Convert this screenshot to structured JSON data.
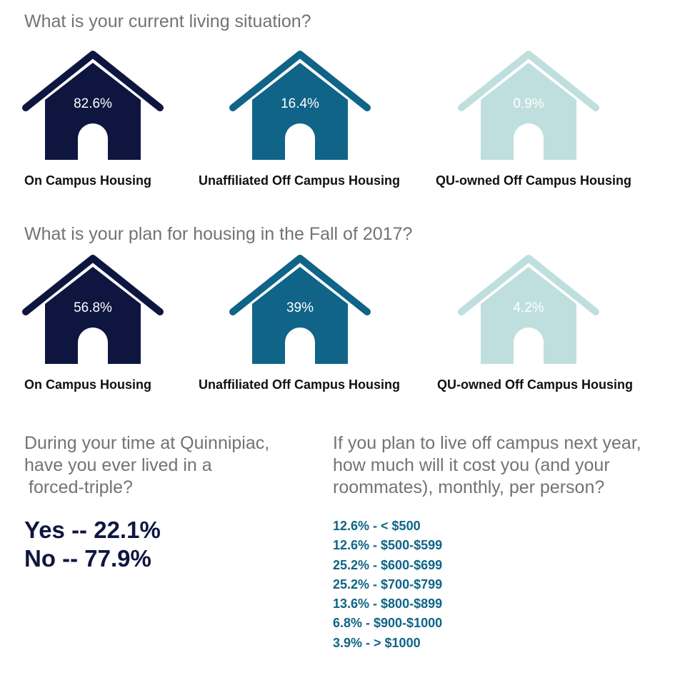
{
  "colors": {
    "dark_navy": "#0e1640",
    "teal_blue": "#0f6487",
    "light_teal": "#bfdfde",
    "question_gray": "#737373"
  },
  "current": {
    "question": "What is your current living situation?",
    "houses": [
      {
        "percent": "82.6%",
        "label": "On Campus Housing",
        "color": "#0e1640",
        "icon": "house-icon"
      },
      {
        "percent": "16.4%",
        "label": "Unaffiliated Off Campus Housing",
        "color": "#0f6487",
        "icon": "house-icon"
      },
      {
        "percent": "0.9%",
        "label": "QU-owned Off Campus Housing",
        "color": "#bfdfde",
        "icon": "house-icon"
      }
    ]
  },
  "fall_plan": {
    "question": "What is your plan for housing in the Fall of 2017?",
    "houses": [
      {
        "percent": "56.8%",
        "label": "On Campus Housing",
        "color": "#0e1640",
        "icon": "house-icon"
      },
      {
        "percent": "39%",
        "label": "Unaffiliated Off Campus Housing",
        "color": "#0f6487",
        "icon": "house-icon"
      },
      {
        "percent": "4.2%",
        "label": "QU-owned Off Campus Housing",
        "color": "#bfdfde",
        "icon": "house-icon"
      }
    ]
  },
  "forced_triple": {
    "question_lines": [
      "During your time at Quinnipiac,",
      "have you ever lived in a",
      "forced-triple?"
    ],
    "yes": "Yes -- 22.1%",
    "no": "No -- 77.9%"
  },
  "off_campus_cost": {
    "question_lines": [
      "If you plan to live off campus next year,",
      "how much will it cost you (and your",
      "roommates), monthly, per person?"
    ],
    "items": [
      "12.6% - < $500",
      "12.6% - $500-$599",
      "25.2% - $600-$699",
      "25.2% - $700-$799",
      "13.6% - $800-$899",
      "6.8% - $900-$1000",
      "3.9% - > $1000"
    ]
  }
}
